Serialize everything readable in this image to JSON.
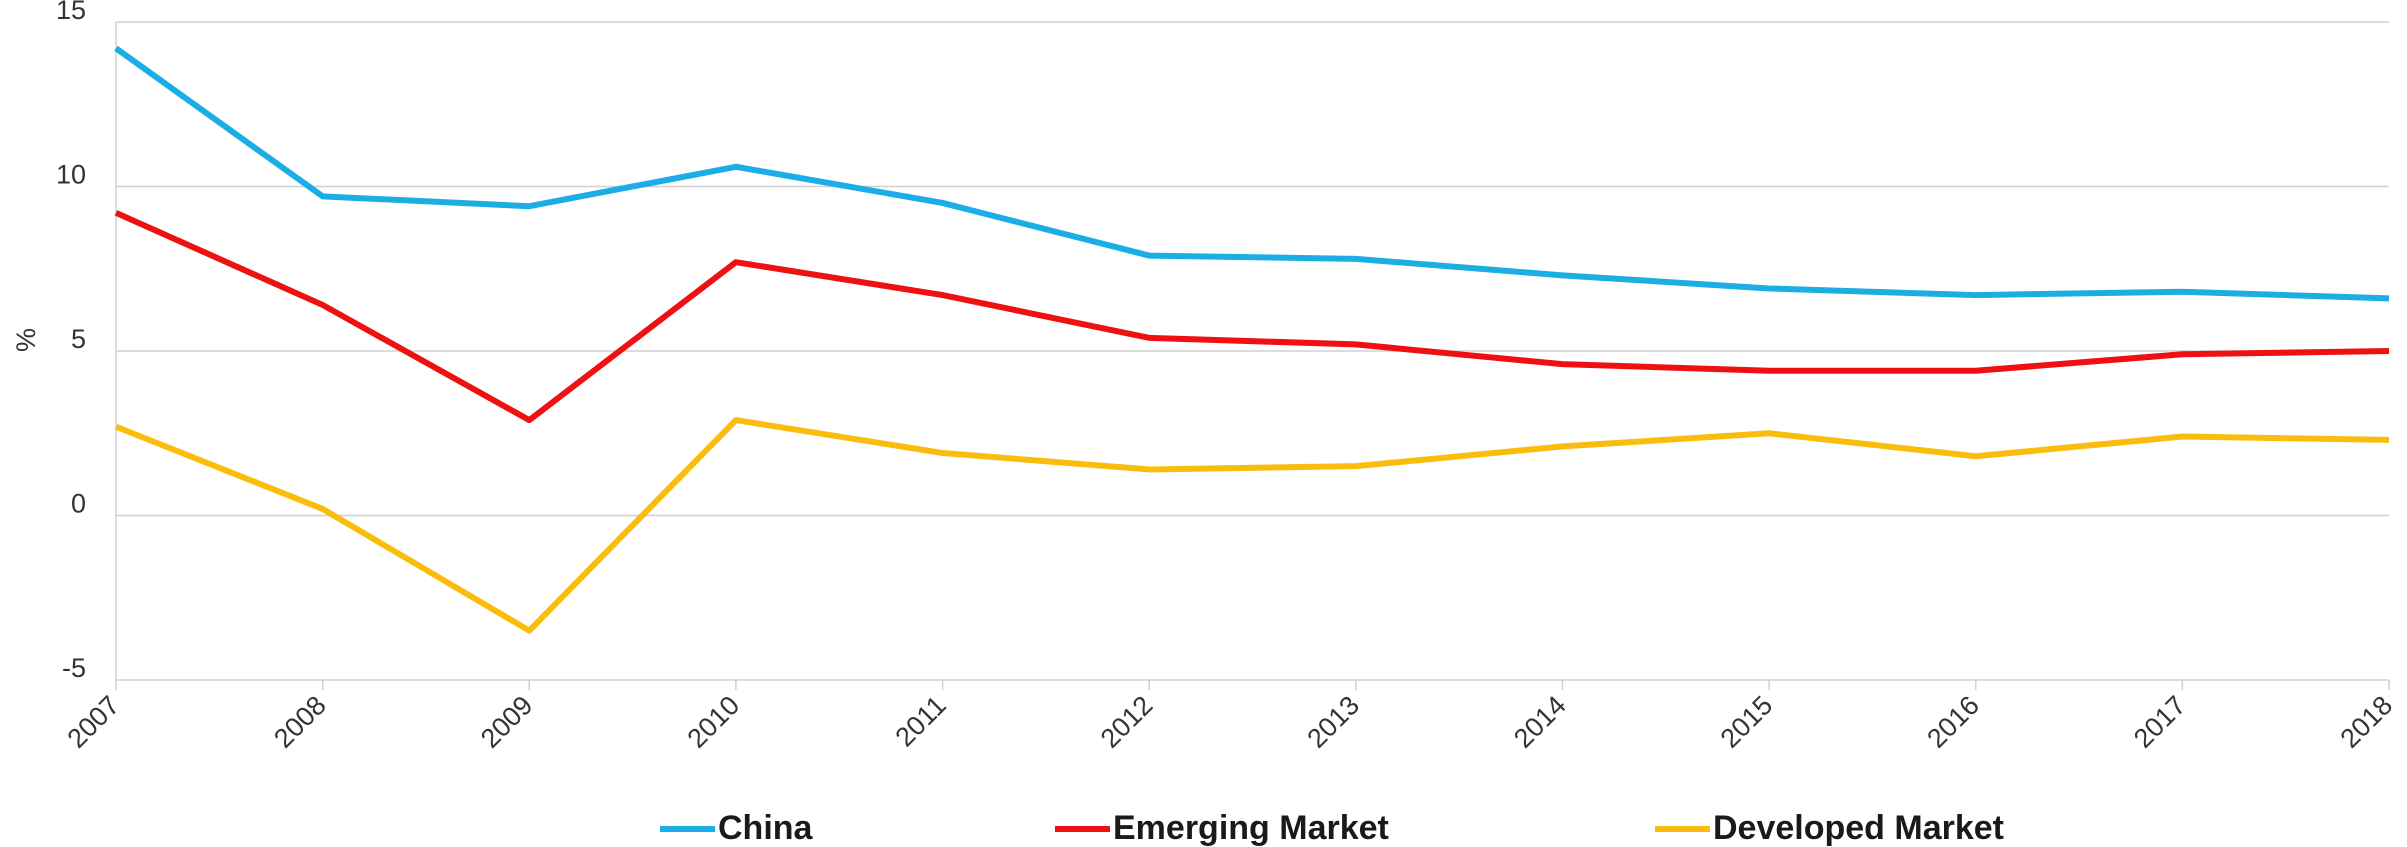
{
  "chart_data": {
    "type": "line",
    "y_label": "%",
    "categories": [
      "2007",
      "2008",
      "2009",
      "2010",
      "2011",
      "2012",
      "2013",
      "2014",
      "2015",
      "2016",
      "2017",
      "2018"
    ],
    "series": [
      {
        "name": "China",
        "color": "#1aaee5",
        "values": [
          14.2,
          9.7,
          9.4,
          10.6,
          9.5,
          7.9,
          7.8,
          7.3,
          6.9,
          6.7,
          6.8,
          6.6
        ]
      },
      {
        "name": "Emerging Market",
        "color": "#ee1111",
        "values": [
          9.2,
          6.4,
          2.9,
          7.7,
          6.7,
          5.4,
          5.2,
          4.6,
          4.4,
          4.4,
          4.9,
          5.0
        ]
      },
      {
        "name": "Developed Market",
        "color": "#fbbd0d",
        "values": [
          2.7,
          0.2,
          -3.5,
          2.9,
          1.9,
          1.4,
          1.5,
          2.1,
          2.5,
          1.8,
          2.4,
          2.3
        ]
      }
    ],
    "ylim": [
      -5,
      15
    ],
    "yticks": [
      -5,
      0,
      5,
      10,
      15
    ],
    "grid": true
  }
}
